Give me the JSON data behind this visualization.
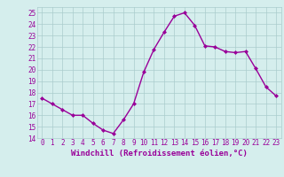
{
  "x": [
    0,
    1,
    2,
    3,
    4,
    5,
    6,
    7,
    8,
    9,
    10,
    11,
    12,
    13,
    14,
    15,
    16,
    17,
    18,
    19,
    20,
    21,
    22,
    23
  ],
  "y": [
    17.5,
    17.0,
    16.5,
    16.0,
    16.0,
    15.3,
    14.7,
    14.4,
    15.6,
    17.0,
    19.8,
    21.8,
    23.3,
    24.7,
    25.0,
    23.9,
    22.1,
    22.0,
    21.6,
    21.5,
    21.6,
    20.1,
    18.5,
    17.7
  ],
  "line_color": "#990099",
  "marker": "D",
  "marker_size": 2.0,
  "linewidth": 1.0,
  "xlabel": "Windchill (Refroidissement éolien,°C)",
  "xlabel_fontsize": 6.5,
  "xlim": [
    -0.5,
    23.5
  ],
  "ylim": [
    14,
    25.5
  ],
  "yticks": [
    14,
    15,
    16,
    17,
    18,
    19,
    20,
    21,
    22,
    23,
    24,
    25
  ],
  "xtick_labels": [
    "0",
    "1",
    "2",
    "3",
    "4",
    "5",
    "6",
    "7",
    "8",
    "9",
    "10",
    "11",
    "12",
    "13",
    "14",
    "15",
    "16",
    "17",
    "18",
    "19",
    "20",
    "21",
    "22",
    "23"
  ],
  "bg_color": "#d5eeed",
  "grid_color": "#aacccc",
  "tick_label_fontsize": 5.5,
  "tick_color": "#990099"
}
